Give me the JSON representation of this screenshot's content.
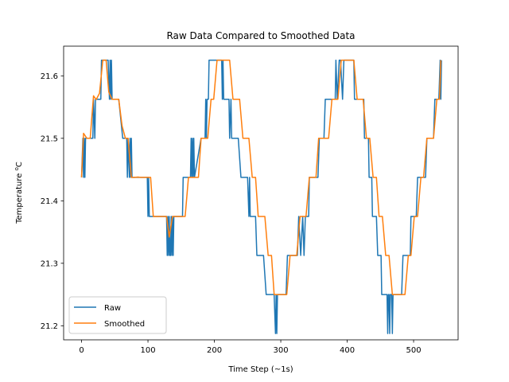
{
  "chart_data": {
    "type": "line",
    "title": "Raw Data Compared to Smoothed Data",
    "xlabel": "Time Step (~1s)",
    "ylabel_main": "Temperature ",
    "ylabel_sup": "o",
    "ylabel_unit": "C",
    "xlim": [
      -27,
      567
    ],
    "ylim": [
      21.1775,
      21.6475
    ],
    "xticks": [
      0,
      100,
      200,
      300,
      400,
      500
    ],
    "xtick_labels": [
      "0",
      "100",
      "200",
      "300",
      "400",
      "500"
    ],
    "yticks": [
      21.2,
      21.3,
      21.4,
      21.5,
      21.6
    ],
    "ytick_labels": [
      "21.2",
      "21.3",
      "21.4",
      "21.5",
      "21.6"
    ],
    "legend_position": "lower-left",
    "colors": {
      "raw": "#1f77b4",
      "smoothed": "#ff7f0e"
    },
    "series": [
      {
        "name": "Raw",
        "x": [
          0,
          2,
          3,
          4,
          5,
          6,
          7,
          8,
          17,
          18,
          20,
          21,
          22,
          24,
          25,
          26,
          28,
          29,
          30,
          31,
          33,
          34,
          40,
          42,
          43,
          44,
          45,
          46,
          47,
          52,
          53,
          54,
          55,
          56,
          62,
          64,
          66,
          68,
          69,
          70,
          72,
          73,
          74,
          75,
          76,
          78,
          79,
          80,
          81,
          82,
          83,
          84,
          85,
          86,
          94,
          97,
          98,
          99,
          100,
          101,
          102,
          103,
          104,
          108,
          110,
          111,
          112,
          113,
          114,
          115,
          116,
          123,
          125,
          126,
          127,
          128,
          129,
          130,
          131,
          132,
          133,
          134,
          135,
          136,
          137,
          138,
          139,
          140,
          141,
          142,
          145,
          147,
          148,
          149,
          150,
          151,
          152,
          153,
          154,
          155,
          156,
          162,
          163,
          164,
          165,
          166,
          167,
          168,
          169,
          170,
          180,
          183,
          184,
          185,
          186,
          187,
          188,
          189,
          190,
          191,
          192,
          193,
          194,
          195,
          200,
          203,
          204,
          205,
          206,
          207,
          208,
          209,
          210,
          211,
          212,
          213,
          214,
          215,
          216,
          218,
          220,
          221,
          222,
          223,
          225,
          226,
          228,
          232,
          233,
          234,
          235,
          236,
          240,
          245,
          246,
          247,
          248,
          250,
          252,
          253,
          254,
          255,
          257,
          258,
          260,
          262,
          264,
          266,
          269,
          270,
          272,
          274,
          278,
          280,
          283,
          285,
          288,
          290,
          292,
          293,
          294,
          295,
          296,
          298,
          299,
          300,
          302,
          304,
          306,
          308,
          310,
          313,
          316,
          318,
          320,
          322,
          325,
          327,
          330,
          333,
          335,
          337,
          338,
          339,
          340,
          342,
          343,
          345,
          347,
          350,
          352,
          354,
          356,
          358,
          360,
          361,
          362,
          365,
          367,
          370,
          372,
          375,
          377,
          380,
          381,
          382,
          383,
          385,
          388,
          390,
          393,
          395,
          397,
          400,
          402,
          404,
          406,
          408,
          410,
          411,
          413,
          414,
          416,
          417,
          418,
          419,
          420,
          423,
          425,
          426,
          428,
          430,
          431,
          432,
          433,
          434,
          436,
          437,
          438,
          440,
          442,
          443,
          444,
          446,
          448,
          449,
          451,
          452,
          454,
          455,
          456,
          457,
          458,
          460,
          461,
          462,
          463,
          464,
          465,
          466,
          467,
          468,
          469,
          470,
          472,
          474,
          475,
          476,
          478,
          480,
          482,
          484,
          486,
          488,
          490,
          492,
          494,
          495,
          496,
          498,
          500,
          502,
          504,
          506,
          508,
          510,
          512,
          514,
          516,
          518,
          520,
          522,
          524,
          526,
          528,
          530,
          532,
          534,
          536,
          538,
          540,
          541,
          542
        ],
        "y": [
          21.4375,
          21.5,
          21.4375,
          21.5,
          21.4375,
          21.5,
          21.5,
          21.5,
          21.5,
          21.5625,
          21.5,
          21.5625,
          21.5625,
          21.5625,
          21.5625,
          21.5625,
          21.5625,
          21.5625,
          21.625,
          21.625,
          21.625,
          21.625,
          21.625,
          21.5625,
          21.625,
          21.5625,
          21.625,
          21.5625,
          21.5625,
          21.5625,
          21.5625,
          21.5625,
          21.5625,
          21.5625,
          21.5,
          21.5,
          21.5,
          21.5,
          21.4375,
          21.5,
          21.4375,
          21.5,
          21.4375,
          21.5,
          21.4375,
          21.4375,
          21.4375,
          21.4375,
          21.4375,
          21.4375,
          21.4375,
          21.4375,
          21.4375,
          21.4375,
          21.4375,
          21.4375,
          21.4375,
          21.4375,
          21.375,
          21.4375,
          21.375,
          21.375,
          21.375,
          21.375,
          21.375,
          21.375,
          21.375,
          21.375,
          21.375,
          21.375,
          21.375,
          21.375,
          21.375,
          21.375,
          21.375,
          21.375,
          21.3125,
          21.375,
          21.3125,
          21.375,
          21.3125,
          21.3125,
          21.375,
          21.3125,
          21.375,
          21.3125,
          21.375,
          21.375,
          21.375,
          21.375,
          21.375,
          21.375,
          21.375,
          21.375,
          21.375,
          21.375,
          21.375,
          21.4375,
          21.4375,
          21.4375,
          21.4375,
          21.4375,
          21.4375,
          21.4375,
          21.5,
          21.4375,
          21.5,
          21.4375,
          21.5,
          21.4375,
          21.5,
          21.5,
          21.5,
          21.5,
          21.5,
          21.5625,
          21.5,
          21.5625,
          21.5625,
          21.5625,
          21.625,
          21.625,
          21.625,
          21.625,
          21.625,
          21.625,
          21.625,
          21.625,
          21.625,
          21.625,
          21.625,
          21.625,
          21.625,
          21.625,
          21.5625,
          21.625,
          21.5625,
          21.5625,
          21.5625,
          21.5625,
          21.5625,
          21.5625,
          21.5625,
          21.5,
          21.5625,
          21.5,
          21.5,
          21.5,
          21.5,
          21.5,
          21.5,
          21.5,
          21.4375,
          21.4375,
          21.4375,
          21.4375,
          21.4375,
          21.4375,
          21.375,
          21.4375,
          21.375,
          21.375,
          21.375,
          21.375,
          21.375,
          21.375,
          21.3125,
          21.3125,
          21.3125,
          21.3125,
          21.3125,
          21.3125,
          21.25,
          21.25,
          21.25,
          21.25,
          21.25,
          21.25,
          21.1875,
          21.25,
          21.1875,
          21.25,
          21.25,
          21.25,
          21.25,
          21.25,
          21.25,
          21.25,
          21.25,
          21.25,
          21.3125,
          21.3125,
          21.3125,
          21.3125,
          21.3125,
          21.3125,
          21.3125,
          21.375,
          21.3125,
          21.375,
          21.3125,
          21.375,
          21.375,
          21.375,
          21.375,
          21.375,
          21.4375,
          21.4375,
          21.4375,
          21.4375,
          21.4375,
          21.4375,
          21.4375,
          21.5,
          21.5,
          21.5,
          21.5,
          21.5,
          21.5625,
          21.5625,
          21.5625,
          21.5625,
          21.5625,
          21.5625,
          21.5625,
          21.5625,
          21.625,
          21.5625,
          21.625,
          21.625,
          21.5625,
          21.625,
          21.625,
          21.625,
          21.625,
          21.625,
          21.625,
          21.625,
          21.625,
          21.5625,
          21.5625,
          21.5625,
          21.5625,
          21.5625,
          21.5625,
          21.5625,
          21.5625,
          21.5625,
          21.5625,
          21.5,
          21.5,
          21.5,
          21.5,
          21.5,
          21.4375,
          21.4375,
          21.4375,
          21.4375,
          21.375,
          21.375,
          21.375,
          21.375,
          21.375,
          21.3125,
          21.3125,
          21.3125,
          21.3125,
          21.25,
          21.25,
          21.25,
          21.25,
          21.25,
          21.25,
          21.25,
          21.1875,
          21.25,
          21.25,
          21.1875,
          21.25,
          21.25,
          21.25,
          21.1875,
          21.25,
          21.25,
          21.25,
          21.25,
          21.25,
          21.25,
          21.25,
          21.25,
          21.25,
          21.3125,
          21.3125,
          21.3125,
          21.3125,
          21.3125,
          21.3125,
          21.3125,
          21.375,
          21.375,
          21.375,
          21.375,
          21.375,
          21.4375,
          21.4375,
          21.4375,
          21.4375,
          21.4375,
          21.4375,
          21.4375,
          21.5,
          21.5,
          21.5,
          21.5,
          21.5,
          21.5,
          21.5625,
          21.5625,
          21.5625,
          21.5625,
          21.625,
          21.5625,
          21.625
        ]
      },
      {
        "name": "Smoothed",
        "x": [
          0,
          3,
          8,
          13,
          18,
          22,
          27,
          32,
          37,
          41,
          46,
          51,
          56,
          61,
          66,
          70,
          75,
          80,
          85,
          89,
          94,
          99,
          104,
          108,
          113,
          118,
          123,
          128,
          132,
          137,
          142,
          147,
          152,
          156,
          161,
          166,
          171,
          176,
          180,
          185,
          190,
          195,
          199,
          204,
          209,
          214,
          219,
          223,
          228,
          233,
          238,
          243,
          247,
          252,
          257,
          262,
          266,
          271,
          276,
          281,
          286,
          290,
          295,
          300,
          305,
          309,
          314,
          319,
          324,
          329,
          333,
          338,
          343,
          348,
          353,
          357,
          362,
          367,
          372,
          377,
          381,
          386,
          391,
          396,
          401,
          405,
          410,
          415,
          420,
          424,
          429,
          434,
          439,
          444,
          448,
          453,
          458,
          463,
          468,
          472,
          477,
          482,
          487,
          492,
          496,
          501,
          506,
          511,
          515,
          520,
          525,
          530,
          535,
          539,
          541
        ],
        "y": [
          21.4375,
          21.508,
          21.5,
          21.5,
          21.568,
          21.562,
          21.572,
          21.625,
          21.625,
          21.574,
          21.5625,
          21.5625,
          21.5625,
          21.52,
          21.5,
          21.5,
          21.4375,
          21.4375,
          21.438,
          21.4375,
          21.4375,
          21.4375,
          21.4375,
          21.375,
          21.375,
          21.375,
          21.375,
          21.375,
          21.342,
          21.375,
          21.375,
          21.375,
          21.375,
          21.375,
          21.4375,
          21.4375,
          21.4375,
          21.4375,
          21.5,
          21.5,
          21.5,
          21.5625,
          21.5625,
          21.625,
          21.625,
          21.625,
          21.625,
          21.625,
          21.5625,
          21.5625,
          21.5625,
          21.5,
          21.5,
          21.5,
          21.4375,
          21.4375,
          21.375,
          21.375,
          21.375,
          21.3125,
          21.3125,
          21.25,
          21.25,
          21.25,
          21.25,
          21.25,
          21.3125,
          21.3125,
          21.3125,
          21.375,
          21.375,
          21.375,
          21.4375,
          21.4375,
          21.4375,
          21.5,
          21.5,
          21.5,
          21.5,
          21.5625,
          21.5625,
          21.5625,
          21.625,
          21.625,
          21.625,
          21.625,
          21.625,
          21.5625,
          21.5625,
          21.5625,
          21.5,
          21.5,
          21.4375,
          21.4375,
          21.375,
          21.375,
          21.3125,
          21.3125,
          21.25,
          21.25,
          21.25,
          21.25,
          21.25,
          21.3125,
          21.3125,
          21.375,
          21.375,
          21.4375,
          21.4375,
          21.5,
          21.5,
          21.5,
          21.5625,
          21.5625,
          21.625
        ]
      }
    ]
  }
}
